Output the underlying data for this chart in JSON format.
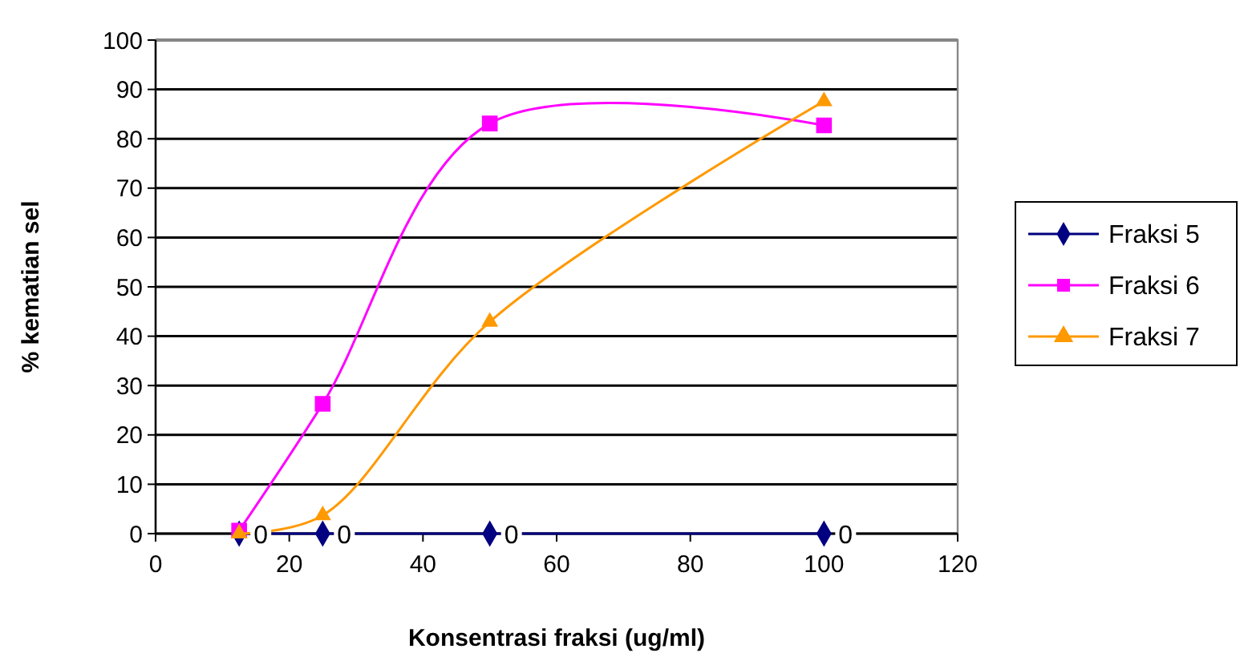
{
  "chart_data": {
    "type": "line",
    "xlabel": "Konsentrasi fraksi (ug/ml)",
    "ylabel": "% kematian sel",
    "x": [
      12.5,
      25,
      50,
      100
    ],
    "xlim": [
      0,
      120
    ],
    "xticks": [
      0,
      20,
      40,
      60,
      80,
      100,
      120
    ],
    "ylim": [
      0,
      100
    ],
    "yticks": [
      0,
      10,
      20,
      30,
      40,
      50,
      60,
      70,
      80,
      90,
      100
    ],
    "grid": "y",
    "legend": "right",
    "series": [
      {
        "name": "Fraksi 5",
        "color": "#000080",
        "marker": "diamond",
        "values": [
          0,
          0,
          0,
          0
        ],
        "value_labels": [
          "0",
          "0",
          "0",
          "0"
        ]
      },
      {
        "name": "Fraksi 6",
        "color": "#ff00ff",
        "marker": "square",
        "values": [
          0.6,
          26.3,
          83.1,
          82.7
        ]
      },
      {
        "name": "Fraksi 7",
        "color": "#ff9900",
        "marker": "triangle",
        "values": [
          0,
          3.7,
          42.9,
          87.6
        ]
      }
    ]
  }
}
